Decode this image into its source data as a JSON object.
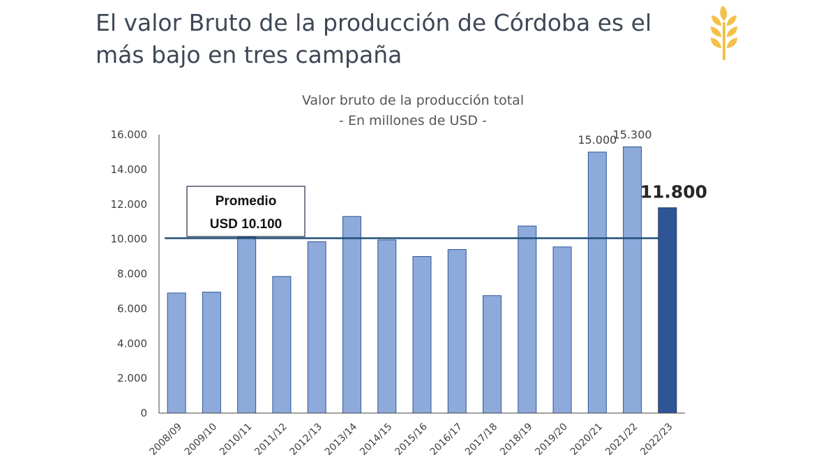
{
  "headline": "El valor Bruto de la producción de Córdoba es el más bajo en tres campaña",
  "logo": {
    "icon": "wheat-icon",
    "color": "#f3c14b"
  },
  "chart_data": {
    "type": "bar",
    "title_line1": "Valor bruto de la producción total",
    "title_line2": "- En millones de USD -",
    "categories": [
      "2008/09",
      "2009/10",
      "2010/11",
      "2011/12",
      "2012/13",
      "2013/14",
      "2014/15",
      "2015/16",
      "2016/17",
      "2017/18",
      "2018/19",
      "2019/20",
      "2020/21",
      "2021/22",
      "2022/23"
    ],
    "values": [
      6900,
      6950,
      10100,
      7850,
      9850,
      11300,
      9950,
      9000,
      9400,
      6750,
      10750,
      9550,
      15000,
      15300,
      11800
    ],
    "highlight_index": 14,
    "data_labels": [
      {
        "index": 12,
        "text": "15.000",
        "emphasis": false
      },
      {
        "index": 13,
        "text": "15.300",
        "emphasis": false
      },
      {
        "index": 14,
        "text": "11.800",
        "emphasis": true
      }
    ],
    "ylim": [
      0,
      16000
    ],
    "yticks": [
      0,
      2000,
      4000,
      6000,
      8000,
      10000,
      12000,
      14000,
      16000
    ],
    "ytick_labels": [
      "0",
      "2.000",
      "4.000",
      "6.000",
      "8.000",
      "10.000",
      "12.000",
      "14.000",
      "16.000"
    ],
    "grid": false,
    "average": {
      "value": 10050,
      "label_line1": "Promedio",
      "label_line2": "USD 10.100"
    },
    "colors": {
      "bar": "#8eaadb",
      "bar_edge": "#2f5597",
      "highlight": "#2f5597",
      "highlight_edge": "#1f3864",
      "average_line": "#1f4e79",
      "axis": "#404040",
      "text": "#404040"
    }
  }
}
